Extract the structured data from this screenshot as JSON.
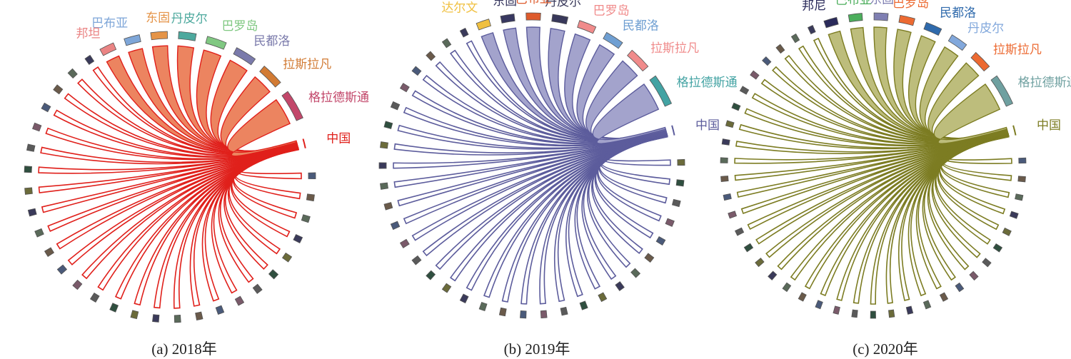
{
  "chart_data": [
    {
      "type": "chord",
      "caption": "(a) 2018年",
      "color": "#e0201b",
      "fill": "#ec8460",
      "source": "中国",
      "source_color": "#e0201b",
      "targets": [
        {
          "name": "格拉德斯通",
          "weight": 1.0,
          "color": "#c2476a"
        },
        {
          "name": "拉斯拉凡",
          "weight": 0.68,
          "color": "#d27b34"
        },
        {
          "name": "民都洛",
          "weight": 0.62,
          "color": "#7a7aab"
        },
        {
          "name": "巴罗岛",
          "weight": 0.54,
          "color": "#80c882"
        },
        {
          "name": "丹皮尔",
          "weight": 0.44,
          "color": "#4da99e"
        },
        {
          "name": "东固",
          "weight": 0.4,
          "color": "#e59448"
        },
        {
          "name": "巴布亚",
          "weight": 0.36,
          "color": "#7ea6d8"
        },
        {
          "name": "邦坦",
          "weight": 0.32,
          "color": "#ea8484"
        }
      ],
      "minor_count": 28
    },
    {
      "type": "chord",
      "caption": "(b) 2019年",
      "color": "#5c5c9c",
      "fill": "#a3a3cc",
      "source": "中国",
      "source_color": "#5c5c9c",
      "targets": [
        {
          "name": "格拉德斯通",
          "weight": 1.0,
          "color": "#43a3a3"
        },
        {
          "name": "拉斯拉凡",
          "weight": 0.62,
          "color": "#f08b8b"
        },
        {
          "name": "民都洛",
          "weight": 0.46,
          "color": "#6f9fd2"
        },
        {
          "name": "巴罗岛",
          "weight": 0.4,
          "color": "#f08b8b"
        },
        {
          "name": "丹皮尔",
          "weight": 0.32,
          "color": "#38385a"
        },
        {
          "name": "巴布亚",
          "weight": 0.28,
          "color": "#de5b2c"
        },
        {
          "name": "东固",
          "weight": 0.24,
          "color": "#383860"
        },
        {
          "name": "达尔文",
          "weight": 0.22,
          "color": "#f0c040"
        }
      ],
      "minor_count": 32
    },
    {
      "type": "chord",
      "caption": "(c) 2020年",
      "color": "#7c7c22",
      "fill": "#bdbd7c",
      "source": "中国",
      "source_color": "#7c7c22",
      "targets": [
        {
          "name": "格拉德斯通",
          "weight": 1.0,
          "color": "#6fa0a0"
        },
        {
          "name": "拉斯拉凡",
          "weight": 0.48,
          "color": "#ec6a32"
        },
        {
          "name": "丹皮尔",
          "weight": 0.4,
          "color": "#82a8dc"
        },
        {
          "name": "民都洛",
          "weight": 0.36,
          "color": "#2f6aac"
        },
        {
          "name": "巴罗岛",
          "weight": 0.3,
          "color": "#ec6a32"
        },
        {
          "name": "东固",
          "weight": 0.26,
          "color": "#7f7fb2"
        },
        {
          "name": "巴布亚",
          "weight": 0.24,
          "color": "#4cae5c"
        },
        {
          "name": "邦尼",
          "weight": 0.22,
          "color": "#2a2a5a"
        }
      ],
      "minor_count": 36
    }
  ]
}
